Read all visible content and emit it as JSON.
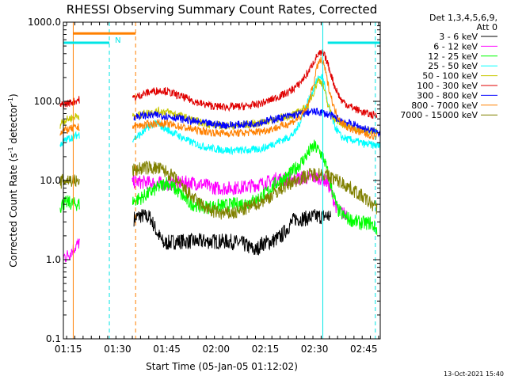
{
  "chart_data": {
    "type": "line",
    "title": "RHESSI Observing Summary Count Rates, Corrected",
    "xlabel": "Start Time (05-Jan-05 01:12:02)",
    "ylabel_main": "Corrected Count Rate (s",
    "ylabel_sup1": "-1",
    "ylabel_mid": " detector",
    "ylabel_sup2": "-1",
    "ylabel_end": ")",
    "footer": "13-Oct-2021 15:40",
    "legend_header": [
      "Det 1,3,4,5,6,9,",
      "Att 0"
    ],
    "y_scale": "log",
    "ylim": [
      0.1,
      1000
    ],
    "xlim_minutes": [
      1.5,
      98
    ],
    "y_ticks": [
      {
        "value": 0.1,
        "label": "0.1"
      },
      {
        "value": 1,
        "label": "1.0"
      },
      {
        "value": 10,
        "label": "10.0"
      },
      {
        "value": 100,
        "label": "100.0"
      },
      {
        "value": 1000,
        "label": "1000.0"
      }
    ],
    "x_ticks": [
      {
        "minute": 3,
        "label": "01:15"
      },
      {
        "minute": 18,
        "label": "01:30"
      },
      {
        "minute": 33,
        "label": "01:45"
      },
      {
        "minute": 48,
        "label": "02:00"
      },
      {
        "minute": 63,
        "label": "02:15"
      },
      {
        "minute": 78,
        "label": "02:30"
      },
      {
        "minute": 93,
        "label": "02:45"
      }
    ],
    "data_gaps_minutes": [
      [
        6.5,
        22.5
      ]
    ],
    "series": [
      {
        "name": "3 - 6 keV",
        "color": "#000000",
        "points": [
          [
            23,
            3.3
          ],
          [
            25,
            3.6
          ],
          [
            28,
            3.4
          ],
          [
            30,
            2.2
          ],
          [
            32,
            1.6
          ],
          [
            36,
            1.7
          ],
          [
            40,
            1.7
          ],
          [
            44,
            1.7
          ],
          [
            48,
            1.7
          ],
          [
            52,
            1.7
          ],
          [
            56,
            1.6
          ],
          [
            60,
            1.3
          ],
          [
            62,
            1.6
          ],
          [
            65,
            1.7
          ],
          [
            68,
            2.0
          ],
          [
            70,
            2.6
          ],
          [
            72,
            3.3
          ],
          [
            75,
            3.3
          ],
          [
            78,
            3.5
          ],
          [
            80,
            3.5
          ],
          [
            82,
            3.6
          ],
          [
            83,
            3.3
          ]
        ]
      },
      {
        "name": "6 - 12 keV",
        "color": "#ff00ff",
        "points": [
          [
            1.5,
            1.1
          ],
          [
            2.5,
            1.1
          ],
          [
            23,
            9.6
          ],
          [
            26,
            9.5
          ],
          [
            30,
            9.3
          ],
          [
            33,
            9.0
          ],
          [
            36,
            9.3
          ],
          [
            40,
            9.5
          ],
          [
            44,
            8.9
          ],
          [
            48,
            8.0
          ],
          [
            52,
            8.0
          ],
          [
            56,
            8.2
          ],
          [
            60,
            8.8
          ],
          [
            63,
            9.3
          ],
          [
            66,
            10.4
          ],
          [
            70,
            10.4
          ],
          [
            74,
            10.8
          ],
          [
            78,
            10.9
          ],
          [
            80,
            10.7
          ],
          [
            82,
            9.4
          ],
          [
            85,
            4.2
          ],
          [
            87,
            3.8
          ],
          [
            88,
            3.9
          ]
        ]
      },
      {
        "name": "12 - 25 keV",
        "color": "#00ff00",
        "points": [
          [
            0.5,
            4.6
          ],
          [
            1,
            5.0
          ],
          [
            3,
            5.3
          ],
          [
            5,
            5.0
          ],
          [
            23,
            5.5
          ],
          [
            26,
            6.3
          ],
          [
            30,
            8.0
          ],
          [
            33,
            9.5
          ],
          [
            36,
            7.5
          ],
          [
            40,
            5.2
          ],
          [
            44,
            4.6
          ],
          [
            48,
            4.7
          ],
          [
            52,
            4.9
          ],
          [
            56,
            5.1
          ],
          [
            60,
            5.6
          ],
          [
            63,
            6.8
          ],
          [
            66,
            9.0
          ],
          [
            70,
            11.5
          ],
          [
            74,
            17
          ],
          [
            77,
            25
          ],
          [
            78,
            27
          ],
          [
            80,
            22
          ],
          [
            81,
            18
          ],
          [
            83,
            8.5
          ],
          [
            85,
            4.3
          ],
          [
            87,
            3.5
          ],
          [
            89,
            3.2
          ],
          [
            92,
            2.9
          ],
          [
            95,
            2.9
          ],
          [
            97,
            2.4
          ]
        ]
      },
      {
        "name": "25 - 50 keV",
        "color": "#00ffff",
        "points": [
          [
            0.5,
            27
          ],
          [
            1,
            30
          ],
          [
            3,
            34
          ],
          [
            5,
            36
          ],
          [
            6,
            38
          ],
          [
            23,
            34
          ],
          [
            25,
            38
          ],
          [
            28,
            50
          ],
          [
            30,
            52
          ],
          [
            33,
            44
          ],
          [
            36,
            38
          ],
          [
            40,
            31
          ],
          [
            44,
            27
          ],
          [
            48,
            25
          ],
          [
            52,
            24
          ],
          [
            56,
            24
          ],
          [
            60,
            24.5
          ],
          [
            63,
            26
          ],
          [
            66,
            30
          ],
          [
            70,
            35
          ],
          [
            72,
            40
          ],
          [
            74,
            60
          ],
          [
            76,
            100
          ],
          [
            77,
            120
          ],
          [
            78,
            160
          ],
          [
            79,
            190
          ],
          [
            80,
            210
          ],
          [
            81,
            170
          ],
          [
            82,
            90
          ],
          [
            84,
            50
          ],
          [
            86,
            36
          ],
          [
            88,
            33
          ],
          [
            90,
            32
          ],
          [
            93,
            29
          ],
          [
            96,
            28
          ],
          [
            98,
            27
          ]
        ]
      },
      {
        "name": "50 - 100 keV",
        "color": "#c8c800",
        "points": [
          [
            0.5,
            50
          ],
          [
            1,
            55
          ],
          [
            3,
            60
          ],
          [
            5,
            64
          ],
          [
            6,
            66
          ],
          [
            23,
            64
          ],
          [
            26,
            70
          ],
          [
            30,
            75
          ],
          [
            33,
            74
          ],
          [
            36,
            68
          ],
          [
            40,
            60
          ],
          [
            44,
            53
          ],
          [
            48,
            50
          ],
          [
            52,
            49
          ],
          [
            56,
            50
          ],
          [
            60,
            52
          ],
          [
            63,
            55
          ],
          [
            66,
            60
          ],
          [
            70,
            65
          ],
          [
            73,
            72
          ],
          [
            76,
            88
          ],
          [
            78,
            140
          ],
          [
            79,
            185
          ],
          [
            80,
            180
          ],
          [
            81,
            140
          ],
          [
            82,
            90
          ],
          [
            84,
            60
          ],
          [
            86,
            52
          ],
          [
            88,
            48
          ],
          [
            91,
            45
          ],
          [
            94,
            43
          ],
          [
            97,
            41
          ]
        ]
      },
      {
        "name": "100 - 300 keV",
        "color": "#e00000",
        "points": [
          [
            0.5,
            85
          ],
          [
            1,
            90
          ],
          [
            3,
            95
          ],
          [
            5,
            100
          ],
          [
            6,
            105
          ],
          [
            23,
            110
          ],
          [
            26,
            125
          ],
          [
            29,
            135
          ],
          [
            32,
            138
          ],
          [
            35,
            125
          ],
          [
            40,
            105
          ],
          [
            44,
            92
          ],
          [
            48,
            86
          ],
          [
            52,
            85
          ],
          [
            56,
            86
          ],
          [
            60,
            90
          ],
          [
            63,
            98
          ],
          [
            66,
            110
          ],
          [
            70,
            130
          ],
          [
            73,
            160
          ],
          [
            76,
            230
          ],
          [
            78,
            330
          ],
          [
            79,
            390
          ],
          [
            80,
            400
          ],
          [
            81,
            380
          ],
          [
            82,
            300
          ],
          [
            84,
            160
          ],
          [
            86,
            105
          ],
          [
            88,
            90
          ],
          [
            91,
            78
          ],
          [
            94,
            70
          ],
          [
            97,
            65
          ]
        ]
      },
      {
        "name": "300 - 800 keV",
        "color": "#0000ff",
        "points": [
          [
            23,
            64
          ],
          [
            26,
            66
          ],
          [
            30,
            67
          ],
          [
            33,
            65
          ],
          [
            36,
            62
          ],
          [
            40,
            57
          ],
          [
            44,
            53
          ],
          [
            48,
            51
          ],
          [
            52,
            50
          ],
          [
            56,
            51
          ],
          [
            60,
            53
          ],
          [
            63,
            56
          ],
          [
            66,
            60
          ],
          [
            70,
            65
          ],
          [
            74,
            70
          ],
          [
            77,
            74
          ],
          [
            80,
            73
          ],
          [
            83,
            66
          ],
          [
            86,
            58
          ],
          [
            89,
            52
          ],
          [
            92,
            47
          ],
          [
            95,
            43
          ],
          [
            98,
            40
          ]
        ]
      },
      {
        "name": "800 - 7000 keV",
        "color": "#ff8000",
        "points": [
          [
            0.5,
            40
          ],
          [
            1,
            42
          ],
          [
            3,
            44
          ],
          [
            5,
            46
          ],
          [
            6,
            47
          ],
          [
            23,
            48
          ],
          [
            26,
            50
          ],
          [
            30,
            53
          ],
          [
            33,
            52
          ],
          [
            36,
            49
          ],
          [
            40,
            45
          ],
          [
            44,
            42
          ],
          [
            48,
            40
          ],
          [
            52,
            39.5
          ],
          [
            56,
            40
          ],
          [
            60,
            41
          ],
          [
            63,
            43
          ],
          [
            66,
            46
          ],
          [
            70,
            52
          ],
          [
            74,
            64
          ],
          [
            76,
            90
          ],
          [
            78,
            190
          ],
          [
            79,
            300
          ],
          [
            80,
            330
          ],
          [
            81,
            280
          ],
          [
            82,
            170
          ],
          [
            84,
            80
          ],
          [
            86,
            55
          ],
          [
            88,
            47
          ],
          [
            91,
            42
          ],
          [
            94,
            38
          ],
          [
            97,
            36
          ]
        ]
      },
      {
        "name": "7000 - 15000 keV",
        "color": "#808000",
        "points": [
          [
            0.5,
            9.0
          ],
          [
            1,
            9.8
          ],
          [
            3,
            10.2
          ],
          [
            5,
            10.0
          ],
          [
            6,
            9.5
          ],
          [
            23,
            13.5
          ],
          [
            26,
            14.5
          ],
          [
            29,
            14.5
          ],
          [
            32,
            13.5
          ],
          [
            35,
            11
          ],
          [
            38,
            8
          ],
          [
            42,
            5.5
          ],
          [
            46,
            4.2
          ],
          [
            50,
            3.8
          ],
          [
            54,
            3.9
          ],
          [
            58,
            4.6
          ],
          [
            62,
            5.5
          ],
          [
            65,
            6.5
          ],
          [
            68,
            8
          ],
          [
            71,
            9.5
          ],
          [
            74,
            10.8
          ],
          [
            77,
            12
          ],
          [
            80,
            12.2
          ],
          [
            83,
            11
          ],
          [
            86,
            9.5
          ],
          [
            89,
            8
          ],
          [
            92,
            6.5
          ],
          [
            95,
            5.2
          ],
          [
            97,
            4.5
          ]
        ]
      }
    ],
    "flag_bars": [
      {
        "color": "#00e5e5",
        "segments": [
          [
            1.5,
            15.5
          ],
          [
            82,
            98
          ]
        ],
        "level": 550
      },
      {
        "color": "#ff8000",
        "segments": [
          [
            4.5,
            23.5
          ]
        ],
        "level": 720
      }
    ],
    "flag_label": {
      "text": "N",
      "minute": 17.2,
      "level": 600,
      "color": "#00e5e5"
    },
    "vertical_markers": [
      {
        "minute": 1.5,
        "color": "#00e5e5",
        "style": "solid"
      },
      {
        "minute": 4.5,
        "color": "#ff8000",
        "style": "solid"
      },
      {
        "minute": 15.5,
        "color": "#00e5e5",
        "style": "dashed"
      },
      {
        "minute": 23.5,
        "color": "#ff8000",
        "style": "dashed"
      },
      {
        "minute": 80.5,
        "color": "#00e5e5",
        "style": "solid"
      },
      {
        "minute": 96.5,
        "color": "#00e5e5",
        "style": "dashed"
      }
    ]
  }
}
